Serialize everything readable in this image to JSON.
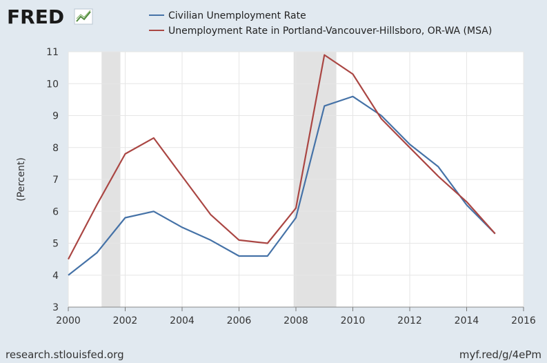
{
  "header": {
    "logo_text": "FRED",
    "logo_icon": "fred-chart-icon"
  },
  "footer": {
    "source": "research.stlouisfed.org",
    "short_link": "myf.red/g/4ePm"
  },
  "colors": {
    "background": "#e1e9f0",
    "plot_background": "#ffffff",
    "recession": "#e2e2e2",
    "series_1": "#4572a7",
    "series_2": "#aa4643"
  },
  "chart_data": {
    "type": "line",
    "ylabel": "(Percent)",
    "xlabel": "",
    "xlim": [
      2000,
      2016
    ],
    "ylim": [
      3,
      11
    ],
    "x_ticks": [
      "2000",
      "2002",
      "2004",
      "2006",
      "2008",
      "2010",
      "2012",
      "2014",
      "2016"
    ],
    "y_ticks": [
      "3",
      "4",
      "5",
      "6",
      "7",
      "8",
      "9",
      "10",
      "11"
    ],
    "grid": true,
    "legend_position": "top-left",
    "recessions": [
      [
        2001.17,
        2001.83
      ],
      [
        2007.92,
        2009.42
      ]
    ],
    "x": [
      2000,
      2001,
      2002,
      2003,
      2004,
      2005,
      2006,
      2007,
      2008,
      2009,
      2010,
      2011,
      2012,
      2013,
      2014,
      2015
    ],
    "series": [
      {
        "name": "Civilian Unemployment Rate",
        "color": "#4572a7",
        "values": [
          4.0,
          4.7,
          5.8,
          6.0,
          5.5,
          5.1,
          4.6,
          4.6,
          5.8,
          9.3,
          9.6,
          9.0,
          8.1,
          7.4,
          6.2,
          5.3
        ]
      },
      {
        "name": "Unemployment Rate in Portland-Vancouver-Hillsboro, OR-WA (MSA)",
        "color": "#aa4643",
        "values": [
          4.5,
          6.2,
          7.8,
          8.3,
          7.1,
          5.9,
          5.1,
          5.0,
          6.1,
          10.9,
          10.3,
          8.9,
          8.0,
          7.1,
          6.3,
          5.3
        ]
      }
    ]
  }
}
